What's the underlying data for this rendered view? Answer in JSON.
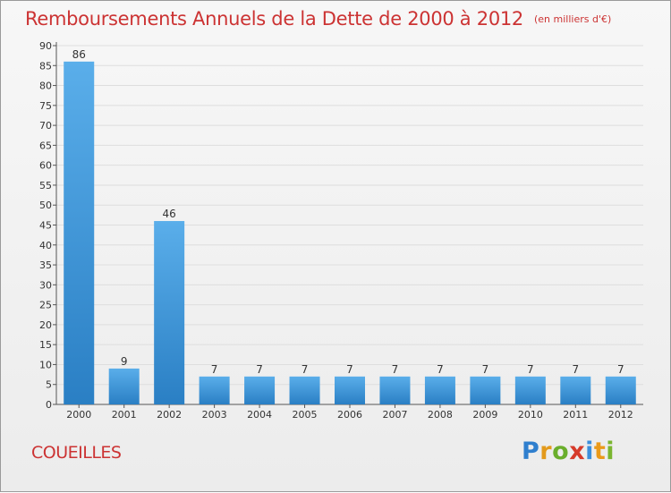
{
  "chart_data": {
    "type": "bar",
    "title": "Remboursements Annuels de la Dette de 2000 à 2012",
    "subtitle": "(en milliers d'€)",
    "categories": [
      "2000",
      "2001",
      "2002",
      "2003",
      "2004",
      "2005",
      "2006",
      "2007",
      "2008",
      "2009",
      "2010",
      "2011",
      "2012"
    ],
    "values": [
      86,
      9,
      46,
      7,
      7,
      7,
      7,
      7,
      7,
      7,
      7,
      7,
      7
    ],
    "ylim": [
      0,
      90
    ],
    "yticks": [
      0,
      5,
      10,
      15,
      20,
      25,
      30,
      35,
      40,
      45,
      50,
      55,
      60,
      65,
      70,
      75,
      80,
      85,
      90
    ],
    "grid": "horizontal",
    "data_labels": true
  },
  "commune": "COUEILLES",
  "brand": {
    "text": "Proxiti",
    "letters": [
      "P",
      "r",
      "o",
      "x",
      "i",
      "t",
      "i"
    ]
  },
  "colors": {
    "title": "#cc3333",
    "bar_top": "#5aaeea",
    "bar_bottom": "#2a7fc4",
    "grid": "#dedede",
    "axis": "#555555",
    "brand_letters": [
      "#2f7fce",
      "#e39a1c",
      "#6aae2c",
      "#d63a2a",
      "#3c8fdc",
      "#ea9a1a",
      "#7ab530"
    ]
  }
}
